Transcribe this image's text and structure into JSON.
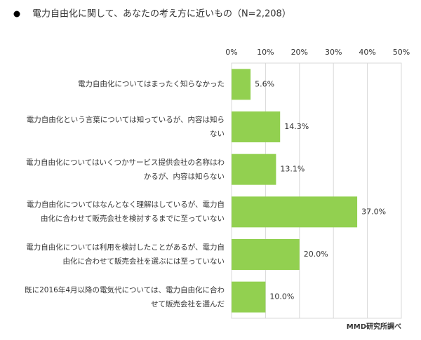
{
  "chart_data": {
    "type": "bar",
    "orientation": "horizontal",
    "title": "電力自由化に関して、あなたの考え方に近いもの（N=2,208）",
    "categories": [
      "電力自由化についてはまったく知らなかった",
      "電力自由化という言葉については知っているが、内容は知らない",
      "電力自由化についてはいくつかサービス提供会社の名称はわかるが、内容は知らない",
      "電力自由化についてはなんとなく理解はしているが、電力自由化に合わせて販売会社を検討するまでに至っていない",
      "電力自由化については利用を検討したことがあるが、電力自由化に合わせて販売会社を選ぶには至っていない",
      "既に2016年4月以降の電気代については、電力自由化に合わせて販売会社を選んだ"
    ],
    "values": [
      5.6,
      14.3,
      13.1,
      37.0,
      20.0,
      10.0
    ],
    "value_labels": [
      "5.6%",
      "14.3%",
      "13.1%",
      "37.0%",
      "20.0%",
      "10.0%"
    ],
    "color": "#92d050",
    "xlim": [
      0,
      50
    ],
    "xticks": [
      {
        "value": 0,
        "label": "0%"
      },
      {
        "value": 10,
        "label": "10%"
      },
      {
        "value": 20,
        "label": "20%"
      },
      {
        "value": 30,
        "label": "30%"
      },
      {
        "value": 40,
        "label": "40%"
      },
      {
        "value": 50,
        "label": "50%"
      }
    ],
    "grid": true,
    "source": "MMD研究所調べ"
  }
}
